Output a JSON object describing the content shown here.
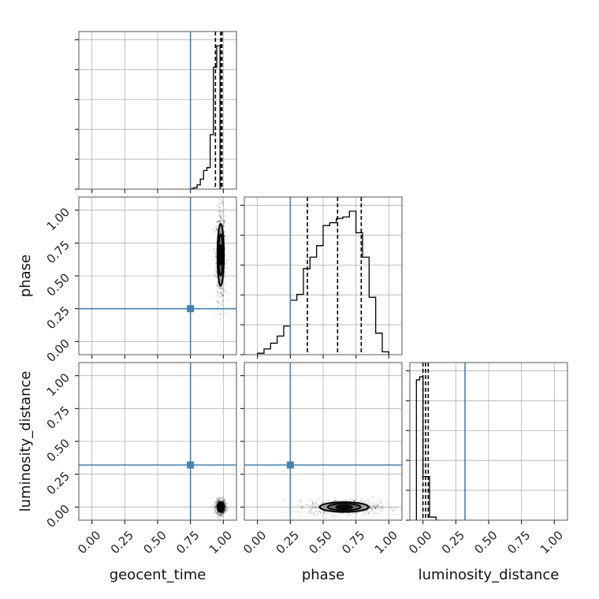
{
  "chart_data": {
    "type": "corner",
    "parameters": [
      "geocent_time",
      "phase",
      "luminosity_distance"
    ],
    "axis_labels": {
      "geocent_time": "geocent_time",
      "phase": "phase",
      "luminosity_distance": "luminosity_distance"
    },
    "axis_range": [
      -0.1,
      1.1
    ],
    "ticks": [
      0.0,
      0.25,
      0.5,
      0.75,
      1.0
    ],
    "tick_labels": [
      "0.00",
      "0.25",
      "0.50",
      "0.75",
      "1.00"
    ],
    "grid": true,
    "truths": {
      "geocent_time": 0.75,
      "phase": 0.25,
      "luminosity_distance": 0.32
    },
    "truth_color": "#4682b4",
    "histograms": {
      "geocent_time": {
        "bin_edges": [
          0.75,
          0.775,
          0.8,
          0.825,
          0.85,
          0.875,
          0.9,
          0.925,
          0.95,
          0.975,
          1.0
        ],
        "counts": [
          0.5,
          1,
          3,
          7,
          13,
          15,
          38,
          85,
          100,
          0
        ],
        "quantiles": [
          0.94,
          0.98,
          0.99
        ]
      },
      "phase": {
        "bin_edges": [
          0.0,
          0.05,
          0.1,
          0.15,
          0.2,
          0.25,
          0.3,
          0.35,
          0.4,
          0.45,
          0.5,
          0.55,
          0.6,
          0.65,
          0.7,
          0.75,
          0.8,
          0.85,
          0.9,
          0.95,
          1.0
        ],
        "counts": [
          1,
          4,
          8,
          13,
          20,
          38,
          42,
          60,
          68,
          76,
          90,
          92,
          95,
          96,
          100,
          85,
          68,
          40,
          15,
          2
        ],
        "quantiles": [
          0.38,
          0.61,
          0.79
        ]
      },
      "luminosity_distance": {
        "bin_edges": [
          -0.05,
          -0.025,
          0.0,
          0.025,
          0.05,
          0.075,
          0.1,
          0.125
        ],
        "counts": [
          90,
          92,
          28,
          28,
          2,
          2,
          0
        ],
        "quantiles": [
          0.0,
          0.02,
          0.04
        ]
      }
    },
    "contours_2d": [
      {
        "x": "geocent_time",
        "y": "phase",
        "center": [
          0.98,
          0.66
        ],
        "spread": [
          0.04,
          0.38
        ]
      },
      {
        "x": "geocent_time",
        "y": "luminosity_distance",
        "center": [
          0.98,
          0.0
        ],
        "spread": [
          0.04,
          0.06
        ]
      },
      {
        "x": "phase",
        "y": "luminosity_distance",
        "center": [
          0.66,
          0.0
        ],
        "spread": [
          0.3,
          0.06
        ]
      }
    ]
  }
}
